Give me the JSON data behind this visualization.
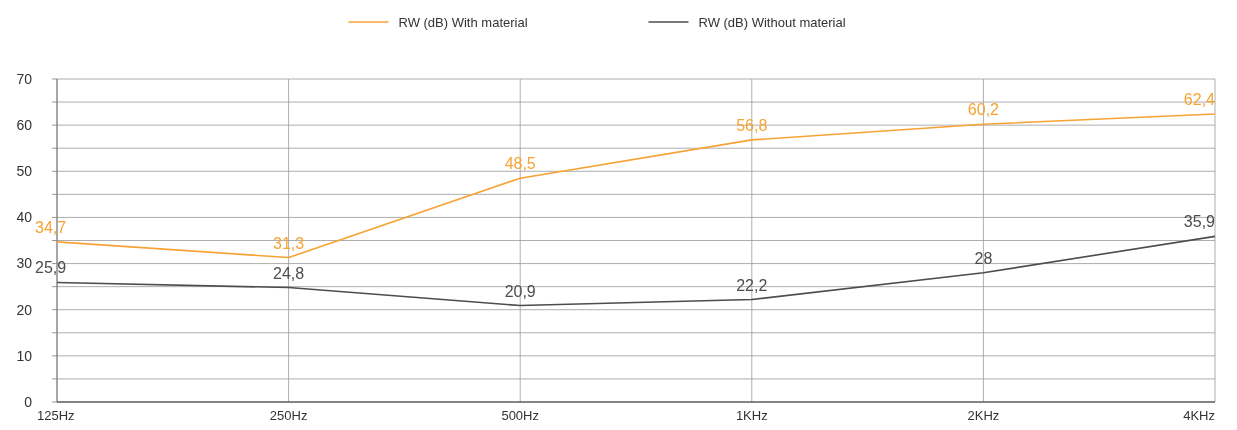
{
  "chart_data": {
    "type": "line",
    "categories": [
      "125Hz",
      "250Hz",
      "500Hz",
      "1KHz",
      "2KHz",
      "4KHz"
    ],
    "series": [
      {
        "name": "RW (dB) With material",
        "color": "#f7a233",
        "values": [
          34.7,
          31.3,
          48.5,
          56.8,
          60.2,
          62.4
        ],
        "value_labels": [
          "34,7",
          "31,3",
          "48,5",
          "56,8",
          "60,2",
          "62,4"
        ]
      },
      {
        "name": "RW (dB) Without material",
        "color": "#4d4d4d",
        "values": [
          25.9,
          24.8,
          20.9,
          22.2,
          28,
          35.9
        ],
        "value_labels": [
          "25,9",
          "24,8",
          "20,9",
          "22,2",
          "28",
          "35,9"
        ]
      }
    ],
    "ylim": [
      0,
      70
    ],
    "yticks": [
      0,
      {
        "value": 5,
        "label": null
      },
      10,
      {
        "value": 15,
        "label": null
      },
      20,
      {
        "value": 25,
        "label": null
      },
      30,
      {
        "value": 35,
        "label": null
      },
      40,
      {
        "value": 45,
        "label": null
      },
      50,
      {
        "value": 55,
        "label": null
      },
      60,
      {
        "value": 65,
        "label": null
      },
      70
    ],
    "grid": true,
    "legend": "top",
    "marker": "none",
    "line_style": "solid"
  }
}
